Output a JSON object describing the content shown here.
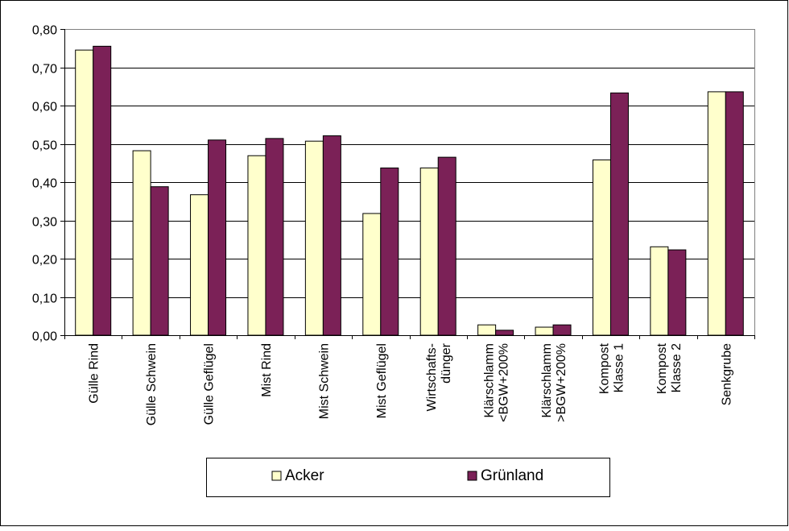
{
  "chart_data": {
    "type": "bar",
    "categories": [
      [
        "Gülle Rind"
      ],
      [
        "Gülle Schwein"
      ],
      [
        "Gülle Geflügel"
      ],
      [
        "Mist Rind"
      ],
      [
        "Mist Schwein"
      ],
      [
        "Mist Geflügel"
      ],
      [
        "Wirtschafts-",
        "dünger"
      ],
      [
        "Klärschlamm",
        "<BGW+200%"
      ],
      [
        "Klärschlamm",
        ">BGW+200%"
      ],
      [
        "Kompost",
        "Klasse 1"
      ],
      [
        "Kompost",
        "Klasse 2"
      ],
      [
        "Senkgrube"
      ]
    ],
    "series": [
      {
        "name": "Acker",
        "color": "#ffffcc",
        "values": [
          0.745,
          0.482,
          0.367,
          0.469,
          0.507,
          0.318,
          0.437,
          0.027,
          0.021,
          0.458,
          0.231,
          0.636
        ]
      },
      {
        "name": "Grünland",
        "color": "#7b2157",
        "values": [
          0.755,
          0.388,
          0.51,
          0.514,
          0.521,
          0.437,
          0.465,
          0.013,
          0.027,
          0.633,
          0.223,
          0.636
        ]
      }
    ],
    "yticks": [
      "0,00",
      "0,10",
      "0,20",
      "0,30",
      "0,40",
      "0,50",
      "0,60",
      "0,70",
      "0,80"
    ],
    "ylim": [
      0,
      0.8
    ],
    "grid": true,
    "legend_position": "bottom",
    "plot_background": "#ffffff",
    "gridline_color": "#000000"
  }
}
